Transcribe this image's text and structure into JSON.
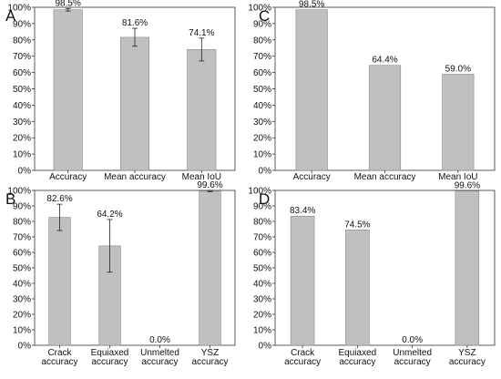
{
  "colors": {
    "bar": "#c0c0c0",
    "bar_edge": "#888888",
    "axis": "#333333",
    "text": "#111111"
  },
  "chart_data": [
    {
      "panel": "A",
      "type": "bar",
      "categories": [
        [
          "Accuracy"
        ],
        [
          "Mean accuracy"
        ],
        [
          "Mean IoU"
        ]
      ],
      "values": [
        98.5,
        81.6,
        74.1
      ],
      "errors": [
        0.8,
        5.5,
        7.0
      ],
      "value_labels": [
        "98.5%",
        "81.6%",
        "74.1%"
      ],
      "ylim": [
        0,
        100
      ],
      "yticks": [
        "0%",
        "10%",
        "20%",
        "30%",
        "40%",
        "50%",
        "60%",
        "70%",
        "80%",
        "90%",
        "100%"
      ],
      "grid": false
    },
    {
      "panel": "C",
      "type": "bar",
      "categories": [
        [
          "Accuracy"
        ],
        [
          "Mean accuracy"
        ],
        [
          "Mean IoU"
        ]
      ],
      "values": [
        98.5,
        64.4,
        59.0
      ],
      "errors": null,
      "value_labels": [
        "98.5%",
        "64.4%",
        "59.0%"
      ],
      "ylim": [
        0,
        100
      ],
      "yticks": [
        "0%",
        "10%",
        "20%",
        "30%",
        "40%",
        "50%",
        "60%",
        "70%",
        "80%",
        "90%",
        "100%"
      ],
      "grid": false
    },
    {
      "panel": "B",
      "type": "bar",
      "categories": [
        [
          "Crack",
          "accuracy"
        ],
        [
          "Equiaxed",
          "accuracy"
        ],
        [
          "Unmelted",
          "accuracy"
        ],
        [
          "YSZ",
          "accuracy"
        ]
      ],
      "values": [
        82.6,
        64.2,
        0.0,
        99.6
      ],
      "errors": [
        8.5,
        17.0,
        0,
        0.5
      ],
      "value_labels": [
        "82.6%",
        "64.2%",
        "0.0%",
        "99.6%"
      ],
      "ylim": [
        0,
        100
      ],
      "yticks": [
        "0%",
        "10%",
        "20%",
        "30%",
        "40%",
        "50%",
        "60%",
        "70%",
        "80%",
        "90%",
        "100%"
      ],
      "grid": false
    },
    {
      "panel": "D",
      "type": "bar",
      "categories": [
        [
          "Crack",
          "accuracy"
        ],
        [
          "Equiaxed",
          "accuracy"
        ],
        [
          "Unmelted",
          "accuracy"
        ],
        [
          "YSZ",
          "accuracy"
        ]
      ],
      "values": [
        83.4,
        74.5,
        0.0,
        99.6
      ],
      "errors": null,
      "value_labels": [
        "83.4%",
        "74.5%",
        "0.0%",
        "99.6%"
      ],
      "ylim": [
        0,
        100
      ],
      "yticks": [
        "0%",
        "10%",
        "20%",
        "30%",
        "40%",
        "50%",
        "60%",
        "70%",
        "80%",
        "90%",
        "100%"
      ],
      "grid": false
    }
  ]
}
